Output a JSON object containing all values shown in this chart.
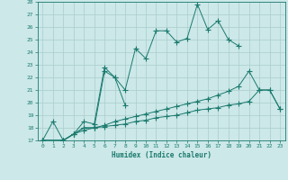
{
  "xlabel": "Humidex (Indice chaleur)",
  "color": "#1a7a6e",
  "bg_color": "#cce8e8",
  "grid_color": "#aacccc",
  "ylim": [
    17,
    28
  ],
  "yticks": [
    17,
    18,
    19,
    20,
    21,
    22,
    23,
    24,
    25,
    26,
    27,
    28
  ],
  "xticks": [
    0,
    1,
    2,
    3,
    4,
    5,
    6,
    7,
    8,
    9,
    10,
    11,
    12,
    13,
    14,
    15,
    16,
    17,
    18,
    19,
    20,
    21,
    22,
    23
  ],
  "line1_x": [
    0,
    1,
    2,
    3,
    4,
    5,
    6,
    7,
    8,
    9,
    10,
    11,
    12,
    13,
    14,
    15,
    16,
    17,
    18,
    19
  ],
  "line1_y": [
    17.0,
    18.5,
    17.0,
    17.5,
    18.0,
    18.0,
    22.5,
    22.0,
    21.0,
    24.3,
    23.5,
    25.7,
    25.7,
    24.8,
    25.1,
    27.8,
    25.8,
    26.5,
    25.0,
    24.5
  ],
  "line2_x": [
    0,
    2,
    3,
    4,
    5,
    6,
    7,
    8
  ],
  "line2_y": [
    17.0,
    17.0,
    17.5,
    18.5,
    18.3,
    22.8,
    22.0,
    19.8
  ],
  "line3_x": [
    0,
    2,
    3,
    4,
    5,
    6,
    7,
    8,
    9,
    10,
    11,
    12,
    13,
    14,
    15,
    16,
    17,
    18,
    19,
    20,
    21,
    22,
    23
  ],
  "line3_y": [
    17.0,
    17.0,
    17.5,
    18.0,
    18.0,
    18.2,
    18.5,
    18.7,
    18.9,
    19.1,
    19.3,
    19.5,
    19.7,
    19.9,
    20.1,
    20.3,
    20.6,
    20.9,
    21.3,
    22.5,
    21.0,
    21.0,
    19.5
  ],
  "line4_x": [
    0,
    2,
    3,
    4,
    5,
    6,
    7,
    8,
    9,
    10,
    11,
    12,
    13,
    14,
    15,
    16,
    17,
    18,
    19,
    20,
    21,
    22,
    23
  ],
  "line4_y": [
    17.0,
    17.0,
    17.5,
    17.8,
    18.0,
    18.1,
    18.2,
    18.3,
    18.5,
    18.6,
    18.8,
    18.9,
    19.0,
    19.2,
    19.4,
    19.5,
    19.6,
    19.8,
    19.9,
    20.1,
    21.0,
    21.0,
    19.5
  ]
}
